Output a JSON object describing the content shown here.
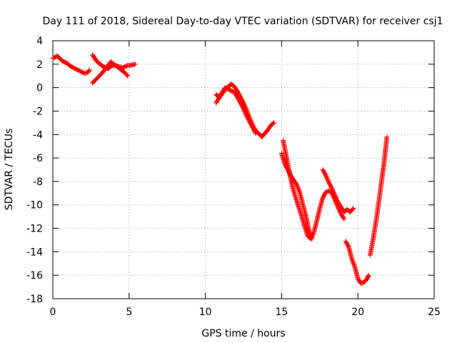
{
  "chart_data": {
    "type": "scatter",
    "title": "Day 111 of 2018, Sidereal Day-to-day VTEC variation (SDTVAR) for receiver csj1",
    "xlabel": "GPS time / hours",
    "ylabel": "SDTVAR / TECUs",
    "xlim": [
      0,
      25
    ],
    "ylim": [
      -18,
      4
    ],
    "xticks": [
      "0",
      "5",
      "10",
      "15",
      "20",
      "25"
    ],
    "yticks": [
      "4",
      "2",
      "0",
      "-2",
      "-4",
      "-6",
      "-8",
      "-10",
      "-12",
      "-14",
      "-16",
      "-18"
    ],
    "grid": true,
    "legend": "none",
    "marker": "+",
    "color": "#ff0000",
    "series": [
      {
        "segments": [
          [
            [
              0.0,
              2.5
            ],
            [
              0.3,
              2.7
            ],
            [
              0.6,
              2.3
            ],
            [
              0.9,
              2.1
            ],
            [
              1.2,
              1.8
            ],
            [
              1.5,
              1.6
            ],
            [
              1.8,
              1.4
            ],
            [
              2.1,
              1.2
            ],
            [
              2.3,
              1.3
            ],
            [
              2.4,
              1.5
            ]
          ],
          [
            [
              2.6,
              2.8
            ],
            [
              2.8,
              2.4
            ],
            [
              3.0,
              2.1
            ],
            [
              3.3,
              1.8
            ],
            [
              3.6,
              1.6
            ],
            [
              3.9,
              1.9
            ],
            [
              4.1,
              1.9
            ],
            [
              4.3,
              1.8
            ],
            [
              4.6,
              1.7
            ],
            [
              4.9,
              1.9
            ],
            [
              5.1,
              1.9
            ],
            [
              5.4,
              2.0
            ]
          ],
          [
            [
              2.6,
              0.4
            ],
            [
              2.9,
              0.8
            ],
            [
              3.2,
              1.2
            ],
            [
              3.5,
              1.7
            ],
            [
              3.8,
              2.2
            ],
            [
              4.1,
              1.9
            ],
            [
              4.4,
              1.6
            ],
            [
              4.7,
              1.3
            ],
            [
              4.9,
              1.0
            ]
          ],
          [
            [
              10.7,
              -1.3
            ],
            [
              10.9,
              -0.9
            ],
            [
              11.1,
              -0.5
            ],
            [
              11.3,
              -0.2
            ],
            [
              11.5,
              0.1
            ],
            [
              11.7,
              0.3
            ],
            [
              11.9,
              0.1
            ],
            [
              12.1,
              -0.3
            ],
            [
              12.3,
              -0.8
            ],
            [
              12.5,
              -1.3
            ],
            [
              12.7,
              -1.9
            ],
            [
              12.9,
              -2.6
            ],
            [
              13.1,
              -3.2
            ],
            [
              13.3,
              -3.7
            ],
            [
              13.5,
              -3.9
            ],
            [
              13.7,
              -4.2
            ],
            [
              13.9,
              -3.9
            ],
            [
              14.1,
              -3.6
            ],
            [
              14.3,
              -3.2
            ],
            [
              14.5,
              -3.0
            ]
          ],
          [
            [
              10.7,
              -0.6
            ],
            [
              10.9,
              -0.8
            ],
            [
              11.1,
              -0.4
            ],
            [
              11.3,
              0.0
            ],
            [
              11.6,
              -0.2
            ],
            [
              11.9,
              -0.4
            ],
            [
              12.1,
              -0.8
            ],
            [
              12.3,
              -1.3
            ],
            [
              12.5,
              -1.8
            ],
            [
              12.7,
              -2.4
            ],
            [
              12.9,
              -2.9
            ],
            [
              13.1,
              -3.4
            ],
            [
              13.3,
              -3.9
            ]
          ],
          [
            [
              15.1,
              -4.5
            ],
            [
              15.3,
              -5.8
            ],
            [
              15.5,
              -7.2
            ],
            [
              15.7,
              -8.4
            ],
            [
              15.9,
              -9.3
            ],
            [
              16.1,
              -10.1
            ],
            [
              16.3,
              -10.9
            ],
            [
              16.5,
              -11.8
            ],
            [
              16.7,
              -12.6
            ],
            [
              16.9,
              -12.9
            ],
            [
              17.1,
              -12.4
            ],
            [
              17.3,
              -11.4
            ],
            [
              17.5,
              -10.3
            ],
            [
              17.7,
              -9.4
            ],
            [
              17.9,
              -8.9
            ],
            [
              18.1,
              -8.8
            ],
            [
              18.3,
              -9.0
            ],
            [
              18.5,
              -9.6
            ],
            [
              18.7,
              -10.2
            ],
            [
              18.9,
              -10.8
            ],
            [
              19.1,
              -11.2
            ]
          ],
          [
            [
              15.0,
              -5.6
            ],
            [
              15.2,
              -6.5
            ],
            [
              15.4,
              -7.0
            ],
            [
              15.6,
              -7.5
            ],
            [
              15.8,
              -7.9
            ],
            [
              16.0,
              -8.3
            ],
            [
              16.2,
              -9.0
            ],
            [
              16.4,
              -10.0
            ],
            [
              16.6,
              -11.0
            ],
            [
              16.8,
              -12.2
            ],
            [
              17.0,
              -12.9
            ]
          ],
          [
            [
              17.7,
              -7.0
            ],
            [
              17.9,
              -7.5
            ],
            [
              18.1,
              -8.1
            ],
            [
              18.3,
              -8.6
            ],
            [
              18.5,
              -9.2
            ],
            [
              18.7,
              -9.8
            ],
            [
              18.9,
              -10.2
            ],
            [
              19.1,
              -10.6
            ],
            [
              19.3,
              -10.4
            ],
            [
              19.5,
              -10.6
            ],
            [
              19.7,
              -10.3
            ]
          ],
          [
            [
              19.2,
              -13.1
            ],
            [
              19.4,
              -13.6
            ],
            [
              19.6,
              -14.6
            ],
            [
              19.8,
              -15.3
            ],
            [
              20.0,
              -16.3
            ],
            [
              20.2,
              -16.7
            ],
            [
              20.4,
              -16.6
            ],
            [
              20.6,
              -16.3
            ],
            [
              20.7,
              -16.0
            ]
          ],
          [
            [
              20.8,
              -14.3
            ],
            [
              21.0,
              -12.9
            ],
            [
              21.2,
              -11.3
            ],
            [
              21.4,
              -9.5
            ],
            [
              21.6,
              -7.5
            ],
            [
              21.7,
              -6.6
            ],
            [
              21.8,
              -5.4
            ],
            [
              21.9,
              -4.2
            ]
          ]
        ]
      }
    ]
  }
}
